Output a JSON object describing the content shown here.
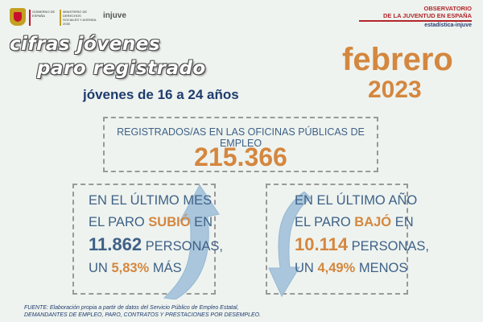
{
  "header": {
    "gov_text": "GOBIERNO DE ESPAÑA",
    "ministry_text": "MINISTERIO DE DERECHOS SOCIALES Y AGENDA 2030",
    "injuve_logo": "injuve",
    "observatory_line1": "OBSERVATORIO",
    "observatory_line2": "DE LA JUVENTUD EN ESPAÑA",
    "observatory_line3": "estadística-injuve"
  },
  "title": {
    "line1": "cifras jóvenes",
    "line2": "paro registrado",
    "subtitle": "jóvenes de 16 a 24 años"
  },
  "period": {
    "month": "febrero",
    "year": "2023"
  },
  "registered": {
    "label": "REGISTRADOS/AS EN LAS OFICINAS PÚBLICAS DE EMPLEO",
    "value": "215.366"
  },
  "monthly": {
    "line1": "EN EL ÚLTIMO MES",
    "line2_prefix": "EL PARO",
    "direction": "SUBIÓ",
    "line2_suffix": "EN",
    "amount": "11.862",
    "persons": "PERSONAS,",
    "un": "UN",
    "percent": "5,83%",
    "trend_word": "MÁS"
  },
  "yearly": {
    "line1": "EN EL ÚLTIMO AÑO",
    "line2_prefix": "EL PARO",
    "direction": "BAJÓ",
    "line2_suffix": "EN",
    "amount": "10.114",
    "persons": "PERSONAS,",
    "un": "UN",
    "percent": "4,49%",
    "trend_word": "MENOS"
  },
  "source": {
    "line1": "FUENTE: Elaboración propia a partir de datos del Servicio Público de Empleo Estatal,",
    "line2": "DEMANDANTES DE EMPLEO, PARO, CONTRATOS Y PRESTACIONES POR DESEMPLEO."
  },
  "colors": {
    "accent_orange": "#d4873f",
    "text_blue": "#3f6187",
    "dark_blue": "#1f3b6e",
    "arrow_blue": "#a9c6dc",
    "brand_red": "#b3262a"
  }
}
